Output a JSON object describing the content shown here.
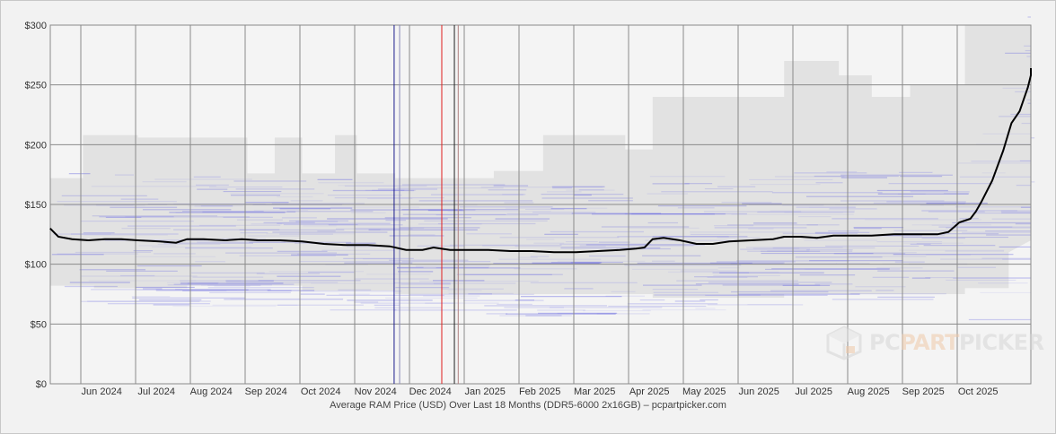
{
  "chart_data": {
    "type": "line",
    "title": "",
    "caption": "Average RAM Price (USD) Over Last 18 Months (DDR5-6000 2x16GB) – pcpartpicker.com",
    "xlabel": "",
    "ylabel": "",
    "ylim": [
      0,
      300
    ],
    "y_ticks": [
      "$0",
      "$50",
      "$100",
      "$150",
      "$200",
      "$250",
      "$300"
    ],
    "y_tick_values": [
      0,
      50,
      100,
      150,
      200,
      250,
      300
    ],
    "x_ticks": [
      "Jun 2024",
      "Jul 2024",
      "Aug 2024",
      "Sep 2024",
      "Oct 2024",
      "Nov 2024",
      "Dec 2024",
      "Jan 2025",
      "Feb 2025",
      "Mar 2025",
      "Apr 2025",
      "May 2025",
      "Jun 2025",
      "Jul 2025",
      "Aug 2025",
      "Sep 2025",
      "Oct 2025"
    ],
    "x_range_months": [
      0,
      17.5
    ],
    "grid": true,
    "markers": [
      {
        "month": 6.28,
        "color": "#1a1a8c"
      },
      {
        "month": 6.38,
        "color": "#8a8ab8"
      },
      {
        "month": 7.15,
        "color": "#e02020"
      },
      {
        "month": 7.38,
        "color": "#202020"
      },
      {
        "month": 7.45,
        "color": "#b08080"
      }
    ],
    "series": [
      {
        "style": "average",
        "color": "#000000",
        "points": [
          [
            0.0,
            130
          ],
          [
            0.15,
            123
          ],
          [
            0.4,
            121
          ],
          [
            0.7,
            120
          ],
          [
            1.0,
            121
          ],
          [
            1.3,
            121
          ],
          [
            1.6,
            120
          ],
          [
            2.0,
            119
          ],
          [
            2.3,
            118
          ],
          [
            2.5,
            121
          ],
          [
            2.8,
            121
          ],
          [
            3.2,
            120
          ],
          [
            3.5,
            121
          ],
          [
            3.8,
            120
          ],
          [
            4.2,
            120
          ],
          [
            4.6,
            119
          ],
          [
            5.0,
            117
          ],
          [
            5.4,
            116
          ],
          [
            5.8,
            116
          ],
          [
            6.2,
            115
          ],
          [
            6.5,
            112
          ],
          [
            6.8,
            112
          ],
          [
            7.0,
            114
          ],
          [
            7.3,
            112
          ],
          [
            7.6,
            112
          ],
          [
            8.0,
            112
          ],
          [
            8.4,
            111
          ],
          [
            8.8,
            111
          ],
          [
            9.2,
            110
          ],
          [
            9.6,
            110
          ],
          [
            10.0,
            111
          ],
          [
            10.4,
            112
          ],
          [
            10.7,
            113
          ],
          [
            10.85,
            114
          ],
          [
            11.0,
            121
          ],
          [
            11.2,
            122
          ],
          [
            11.5,
            120
          ],
          [
            11.8,
            117
          ],
          [
            12.1,
            117
          ],
          [
            12.4,
            119
          ],
          [
            12.8,
            120
          ],
          [
            13.2,
            121
          ],
          [
            13.4,
            123
          ],
          [
            13.7,
            123
          ],
          [
            14.0,
            122
          ],
          [
            14.3,
            124
          ],
          [
            14.6,
            124
          ],
          [
            15.0,
            124
          ],
          [
            15.4,
            125
          ],
          [
            15.7,
            125
          ],
          [
            16.0,
            125
          ],
          [
            16.2,
            125
          ],
          [
            16.4,
            127
          ],
          [
            16.6,
            135
          ],
          [
            16.8,
            138
          ],
          [
            16.9,
            144
          ],
          [
            17.0,
            152
          ],
          [
            17.2,
            170
          ],
          [
            17.4,
            195
          ],
          [
            17.55,
            218
          ],
          [
            17.7,
            228
          ],
          [
            17.85,
            248
          ],
          [
            18.0,
            258
          ],
          [
            18.1,
            264
          ]
        ]
      }
    ],
    "ranges": [
      {
        "style": "max-envelope",
        "color": "#e2e2e2",
        "points": [
          [
            0.0,
            172
          ],
          [
            0.6,
            172
          ],
          [
            0.6,
            208
          ],
          [
            1.6,
            208
          ],
          [
            1.6,
            206
          ],
          [
            2.5,
            206
          ],
          [
            2.5,
            206
          ],
          [
            3.6,
            206
          ],
          [
            3.6,
            176
          ],
          [
            4.1,
            176
          ],
          [
            4.1,
            206
          ],
          [
            4.6,
            206
          ],
          [
            4.6,
            176
          ],
          [
            5.2,
            176
          ],
          [
            5.2,
            208
          ],
          [
            5.6,
            208
          ],
          [
            5.6,
            176
          ],
          [
            6.3,
            176
          ],
          [
            6.3,
            172
          ],
          [
            8.1,
            172
          ],
          [
            8.1,
            178
          ],
          [
            9.0,
            178
          ],
          [
            9.0,
            208
          ],
          [
            10.5,
            208
          ],
          [
            10.5,
            196
          ],
          [
            11.0,
            196
          ],
          [
            11.0,
            240
          ],
          [
            13.4,
            240
          ],
          [
            13.4,
            270
          ],
          [
            14.4,
            270
          ],
          [
            14.4,
            258
          ],
          [
            15.0,
            258
          ],
          [
            15.0,
            240
          ],
          [
            15.7,
            240
          ],
          [
            15.7,
            250
          ],
          [
            16.7,
            250
          ],
          [
            16.7,
            300
          ],
          [
            18.1,
            300
          ]
        ]
      },
      {
        "style": "min-envelope",
        "color": "#e2e2e2",
        "points": [
          [
            0.0,
            82
          ],
          [
            0.8,
            82
          ],
          [
            0.8,
            80
          ],
          [
            2.5,
            80
          ],
          [
            2.5,
            82
          ],
          [
            4.6,
            82
          ],
          [
            4.6,
            78
          ],
          [
            6.3,
            78
          ],
          [
            6.3,
            75
          ],
          [
            8.1,
            75
          ],
          [
            8.1,
            75
          ],
          [
            11.0,
            75
          ],
          [
            11.0,
            72
          ],
          [
            13.4,
            72
          ],
          [
            13.4,
            75
          ],
          [
            16.7,
            75
          ],
          [
            16.7,
            80
          ],
          [
            17.5,
            80
          ],
          [
            17.5,
            110
          ],
          [
            18.1,
            120
          ]
        ]
      }
    ]
  }
}
